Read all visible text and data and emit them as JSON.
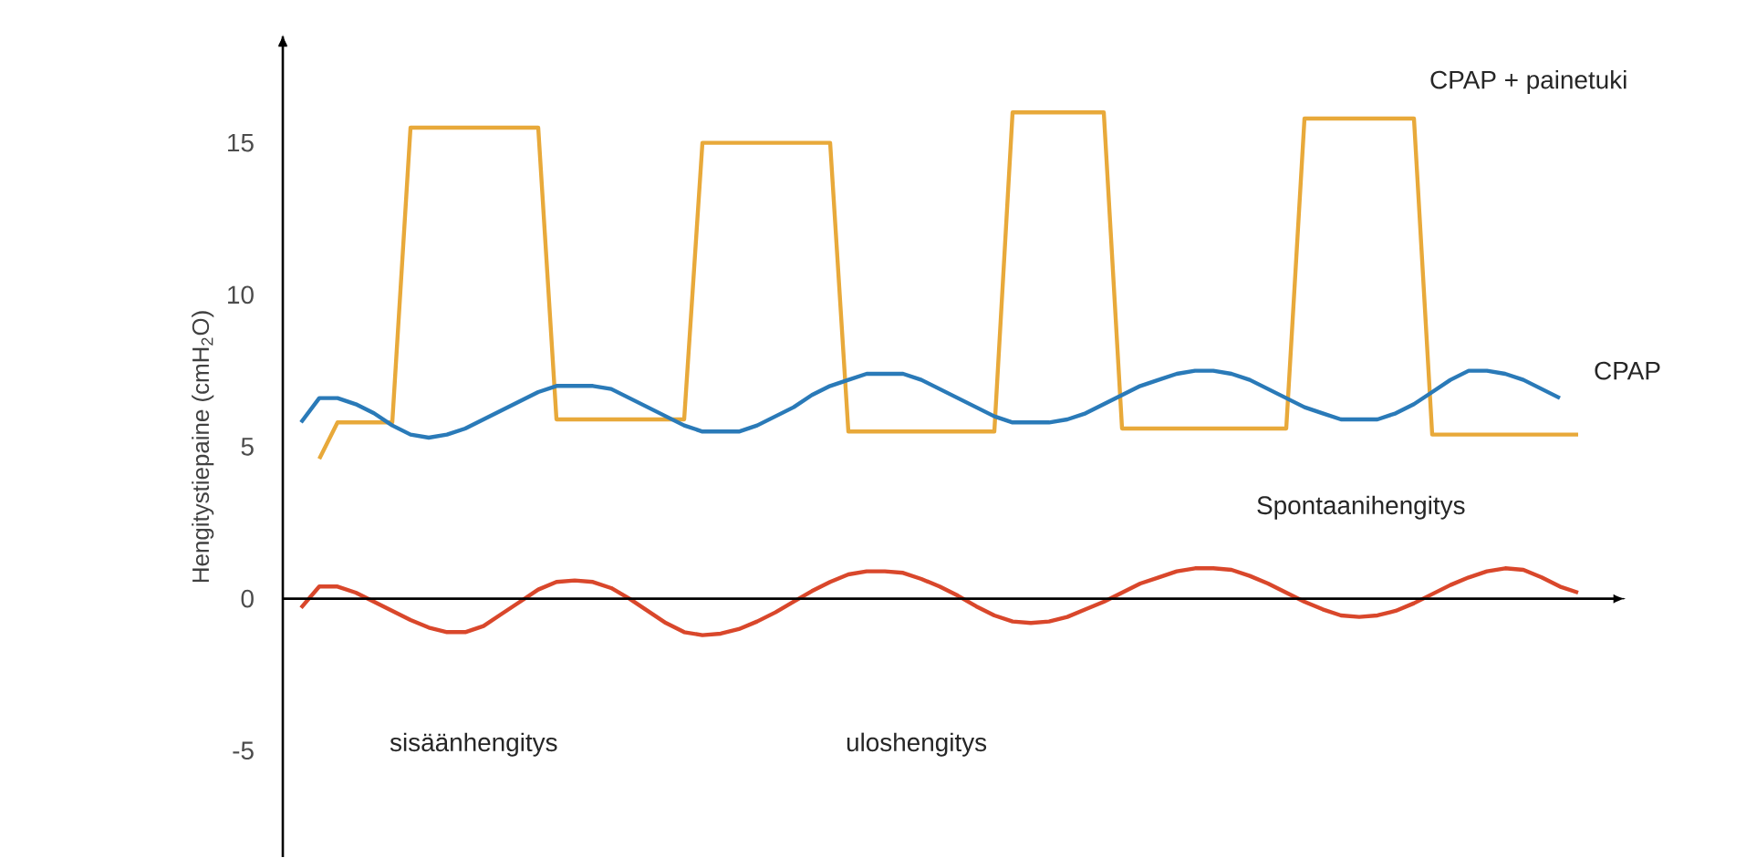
{
  "chart_data": {
    "type": "line",
    "ylabel": "Hengitystiepaine (cmH$_{2}$O)",
    "categories": [
      null,
      null,
      null,
      null,
      null,
      null,
      null,
      null,
      null,
      null,
      null,
      null,
      null,
      null,
      null,
      null,
      null,
      null,
      null,
      null,
      null,
      null,
      null,
      null,
      null,
      null,
      null,
      null,
      null,
      null,
      null,
      null,
      null,
      null,
      null,
      null,
      null,
      null,
      null,
      null,
      null,
      null,
      null,
      null,
      null,
      null,
      null,
      null,
      null,
      null,
      null,
      null,
      null,
      null,
      null,
      null,
      null,
      null,
      null,
      null,
      null,
      null,
      null,
      null,
      null,
      null,
      null,
      null,
      null,
      null,
      null
    ],
    "ylim": [
      -8.5,
      18.5
    ],
    "yticks": [
      -5,
      0,
      5,
      10,
      15
    ],
    "series": [
      {
        "name": "CPAP + painetuki",
        "color": "#e8a93a",
        "values": [
          null,
          4.6,
          5.8,
          5.8,
          5.8,
          5.8,
          15.5,
          15.5,
          15.5,
          15.5,
          15.5,
          15.5,
          15.5,
          15.5,
          5.9,
          5.9,
          5.9,
          5.9,
          5.9,
          5.9,
          5.9,
          5.9,
          15.0,
          15.0,
          15.0,
          15.0,
          15.0,
          15.0,
          15.0,
          15.0,
          5.5,
          5.5,
          5.5,
          5.5,
          5.5,
          5.5,
          5.5,
          5.5,
          5.5,
          16.0,
          16.0,
          16.0,
          16.0,
          16.0,
          16.0,
          5.6,
          5.6,
          5.6,
          5.6,
          5.6,
          5.6,
          5.6,
          5.6,
          5.6,
          5.6,
          15.8,
          15.8,
          15.8,
          15.8,
          15.8,
          15.8,
          15.8,
          5.4,
          5.4,
          5.4,
          5.4,
          5.4,
          5.4,
          5.4,
          5.4,
          5.4
        ]
      },
      {
        "name": "CPAP",
        "color": "#2a7ab8",
        "values": [
          5.8,
          6.6,
          6.6,
          6.4,
          6.1,
          5.7,
          5.4,
          5.3,
          5.4,
          5.6,
          5.9,
          6.2,
          6.5,
          6.8,
          7.0,
          7.0,
          7.0,
          6.9,
          6.6,
          6.3,
          6.0,
          5.7,
          5.5,
          5.5,
          5.5,
          5.7,
          6.0,
          6.3,
          6.7,
          7.0,
          7.2,
          7.4,
          7.4,
          7.4,
          7.2,
          6.9,
          6.6,
          6.3,
          6.0,
          5.8,
          5.8,
          5.8,
          5.9,
          6.1,
          6.4,
          6.7,
          7.0,
          7.2,
          7.4,
          7.5,
          7.5,
          7.4,
          7.2,
          6.9,
          6.6,
          6.3,
          6.1,
          5.9,
          5.9,
          5.9,
          6.1,
          6.4,
          6.8,
          7.2,
          7.5,
          7.5,
          7.4,
          7.2,
          6.9,
          6.6,
          null
        ]
      },
      {
        "name": "Spontaanihengitys",
        "color": "#d9472b",
        "values": [
          -0.3,
          0.4,
          0.4,
          0.2,
          -0.1,
          -0.4,
          -0.7,
          -0.95,
          -1.1,
          -1.1,
          -0.9,
          -0.5,
          -0.1,
          0.3,
          0.55,
          0.6,
          0.55,
          0.35,
          0.0,
          -0.4,
          -0.8,
          -1.1,
          -1.2,
          -1.15,
          -1.0,
          -0.75,
          -0.45,
          -0.1,
          0.25,
          0.55,
          0.8,
          0.9,
          0.9,
          0.85,
          0.65,
          0.4,
          0.1,
          -0.25,
          -0.55,
          -0.75,
          -0.8,
          -0.75,
          -0.6,
          -0.35,
          -0.1,
          0.2,
          0.5,
          0.7,
          0.9,
          1.0,
          1.0,
          0.95,
          0.75,
          0.5,
          0.2,
          -0.1,
          -0.35,
          -0.55,
          -0.6,
          -0.55,
          -0.4,
          -0.15,
          0.15,
          0.45,
          0.7,
          0.9,
          1.0,
          0.95,
          0.7,
          0.4,
          0.2
        ]
      }
    ],
    "annotations": [
      "sisäänhengitys",
      "uloshengitys"
    ]
  }
}
